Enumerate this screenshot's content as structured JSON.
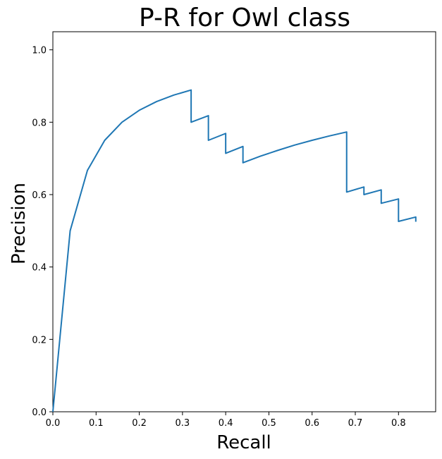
{
  "chart_data": {
    "type": "line",
    "title": "P-R for Owl class",
    "xlabel": "Recall",
    "ylabel": "Precision",
    "xlim": [
      0.0,
      0.886
    ],
    "ylim": [
      0.0,
      1.05
    ],
    "xticks": [
      0.0,
      0.1,
      0.2,
      0.3,
      0.4,
      0.5,
      0.6,
      0.7,
      0.8
    ],
    "xtick_labels": [
      "0.0",
      "0.1",
      "0.2",
      "0.3",
      "0.4",
      "0.5",
      "0.6",
      "0.7",
      "0.8"
    ],
    "yticks": [
      0.0,
      0.2,
      0.4,
      0.6,
      0.8,
      1.0
    ],
    "ytick_labels": [
      "0.0",
      "0.2",
      "0.4",
      "0.6",
      "0.8",
      "1.0"
    ],
    "grid": false,
    "colors": {
      "series": "#1f77b4"
    },
    "series": [
      {
        "x": [
          0.0,
          0.04,
          0.08,
          0.12,
          0.16,
          0.2,
          0.24,
          0.28,
          0.32,
          0.32,
          0.36,
          0.36,
          0.4,
          0.4,
          0.44,
          0.44,
          0.48,
          0.52,
          0.56,
          0.6,
          0.64,
          0.68,
          0.68,
          0.72,
          0.72,
          0.76,
          0.76,
          0.8,
          0.8,
          0.84,
          0.84
        ],
        "y": [
          0.0,
          0.5,
          0.667,
          0.75,
          0.8,
          0.833,
          0.857,
          0.875,
          0.889,
          0.8,
          0.818,
          0.75,
          0.769,
          0.714,
          0.733,
          0.688,
          0.706,
          0.722,
          0.737,
          0.75,
          0.762,
          0.773,
          0.607,
          0.621,
          0.6,
          0.613,
          0.576,
          0.588,
          0.526,
          0.538,
          0.525
        ]
      }
    ]
  }
}
